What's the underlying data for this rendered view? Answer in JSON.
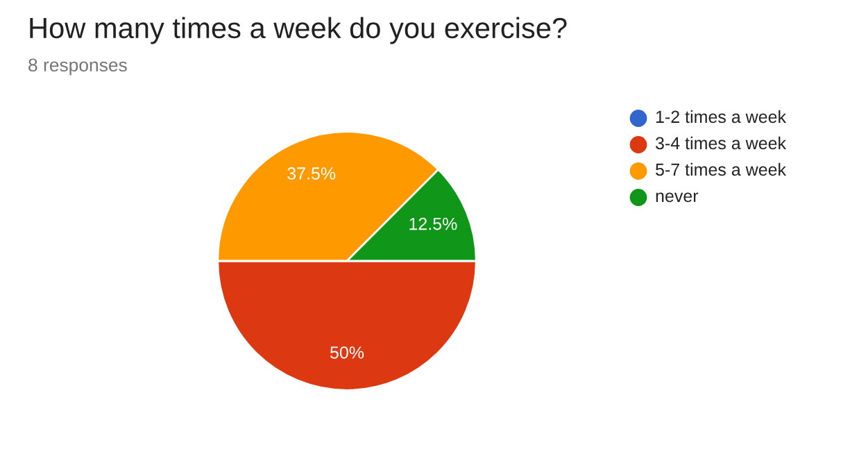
{
  "chart_data": {
    "type": "pie",
    "title": "How many times a week do you exercise?",
    "subtitle": "8 responses",
    "categories": [
      "1-2 times a week",
      "3-4 times a week",
      "5-7 times a week",
      "never"
    ],
    "values": [
      0,
      50,
      37.5,
      12.5
    ],
    "colors": [
      "#3366cc",
      "#dc3912",
      "#ff9900",
      "#109618"
    ],
    "value_labels": [
      null,
      "50%",
      "37.5%",
      "12.5%"
    ],
    "legend": "right"
  }
}
